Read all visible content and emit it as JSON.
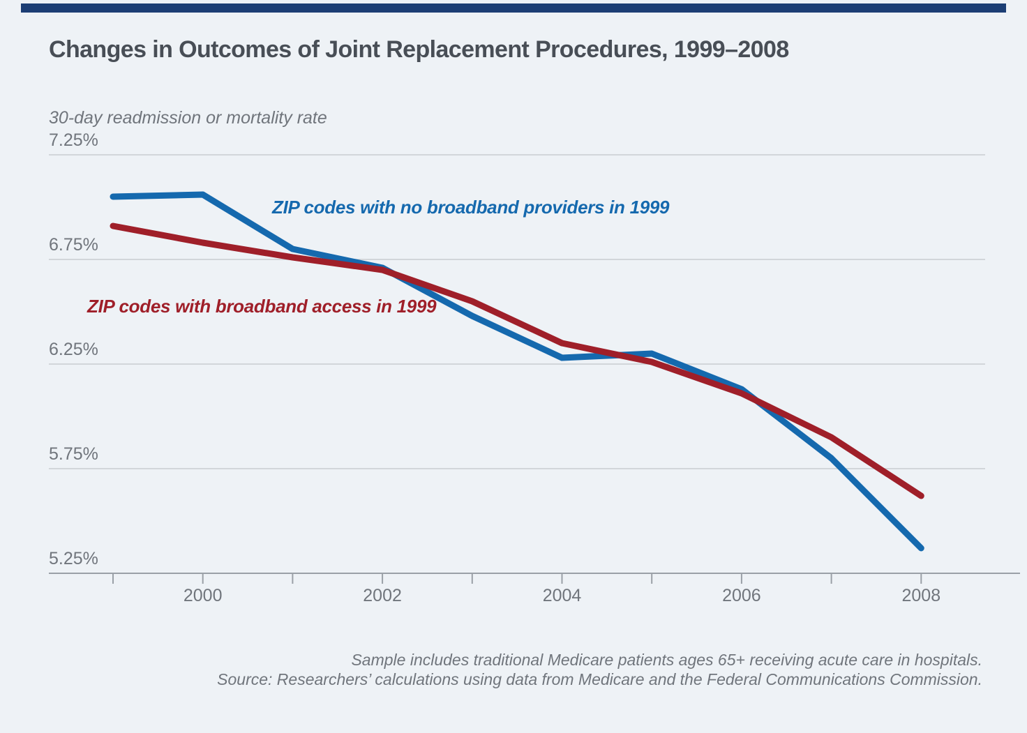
{
  "title": "Changes in Outcomes of Joint Replacement Procedures, 1999–2008",
  "colors": {
    "background": "#eef2f6",
    "top_bar": "#1c3e74",
    "title_text": "#484e56",
    "axis_text": "#70757c",
    "gridline": "#c9cdd1",
    "axis_line": "#9aa0a7",
    "blue_series": "#1569ae",
    "red_series": "#9f1f29"
  },
  "chart_data": {
    "type": "line",
    "title": "Changes in Outcomes of Joint Replacement Procedures, 1999–2008",
    "xlabel": "",
    "ylabel": "30-day readmission or mortality rate",
    "x": [
      1999,
      2000,
      2001,
      2002,
      2003,
      2004,
      2005,
      2006,
      2007,
      2008
    ],
    "series": [
      {
        "name": "ZIP codes with no broadband providers in 1999",
        "color": "#1569ae",
        "values": [
          7.05,
          7.06,
          6.8,
          6.71,
          6.48,
          6.28,
          6.3,
          6.13,
          5.8,
          5.37
        ]
      },
      {
        "name": "ZIP codes with broadband access in 1999",
        "color": "#9f1f29",
        "values": [
          6.91,
          6.83,
          6.76,
          6.7,
          6.55,
          6.35,
          6.26,
          6.11,
          5.9,
          5.62
        ]
      }
    ],
    "y_tick_labels": [
      "7.25%",
      "6.75%",
      "6.25%",
      "5.75%",
      "5.25%"
    ],
    "y_tick_values": [
      7.25,
      6.75,
      6.25,
      5.75,
      5.25
    ],
    "x_tick_years": [
      1999,
      2000,
      2001,
      2002,
      2003,
      2004,
      2005,
      2006,
      2007,
      2008
    ],
    "x_label_years": [
      2000,
      2002,
      2004,
      2006,
      2008
    ],
    "x_label_texts": [
      "2000",
      "2002",
      "2004",
      "2006",
      "2008"
    ],
    "ylim": [
      5.25,
      7.25
    ],
    "xlim": [
      1999,
      2008
    ],
    "grid": true,
    "legend_position": "inline-annotations"
  },
  "notes": {
    "line1": "Sample includes traditional Medicare patients ages 65+ receiving acute care in hospitals.",
    "line2": "Source: Researchers’ calculations using data from Medicare and the Federal Communications Commission."
  }
}
